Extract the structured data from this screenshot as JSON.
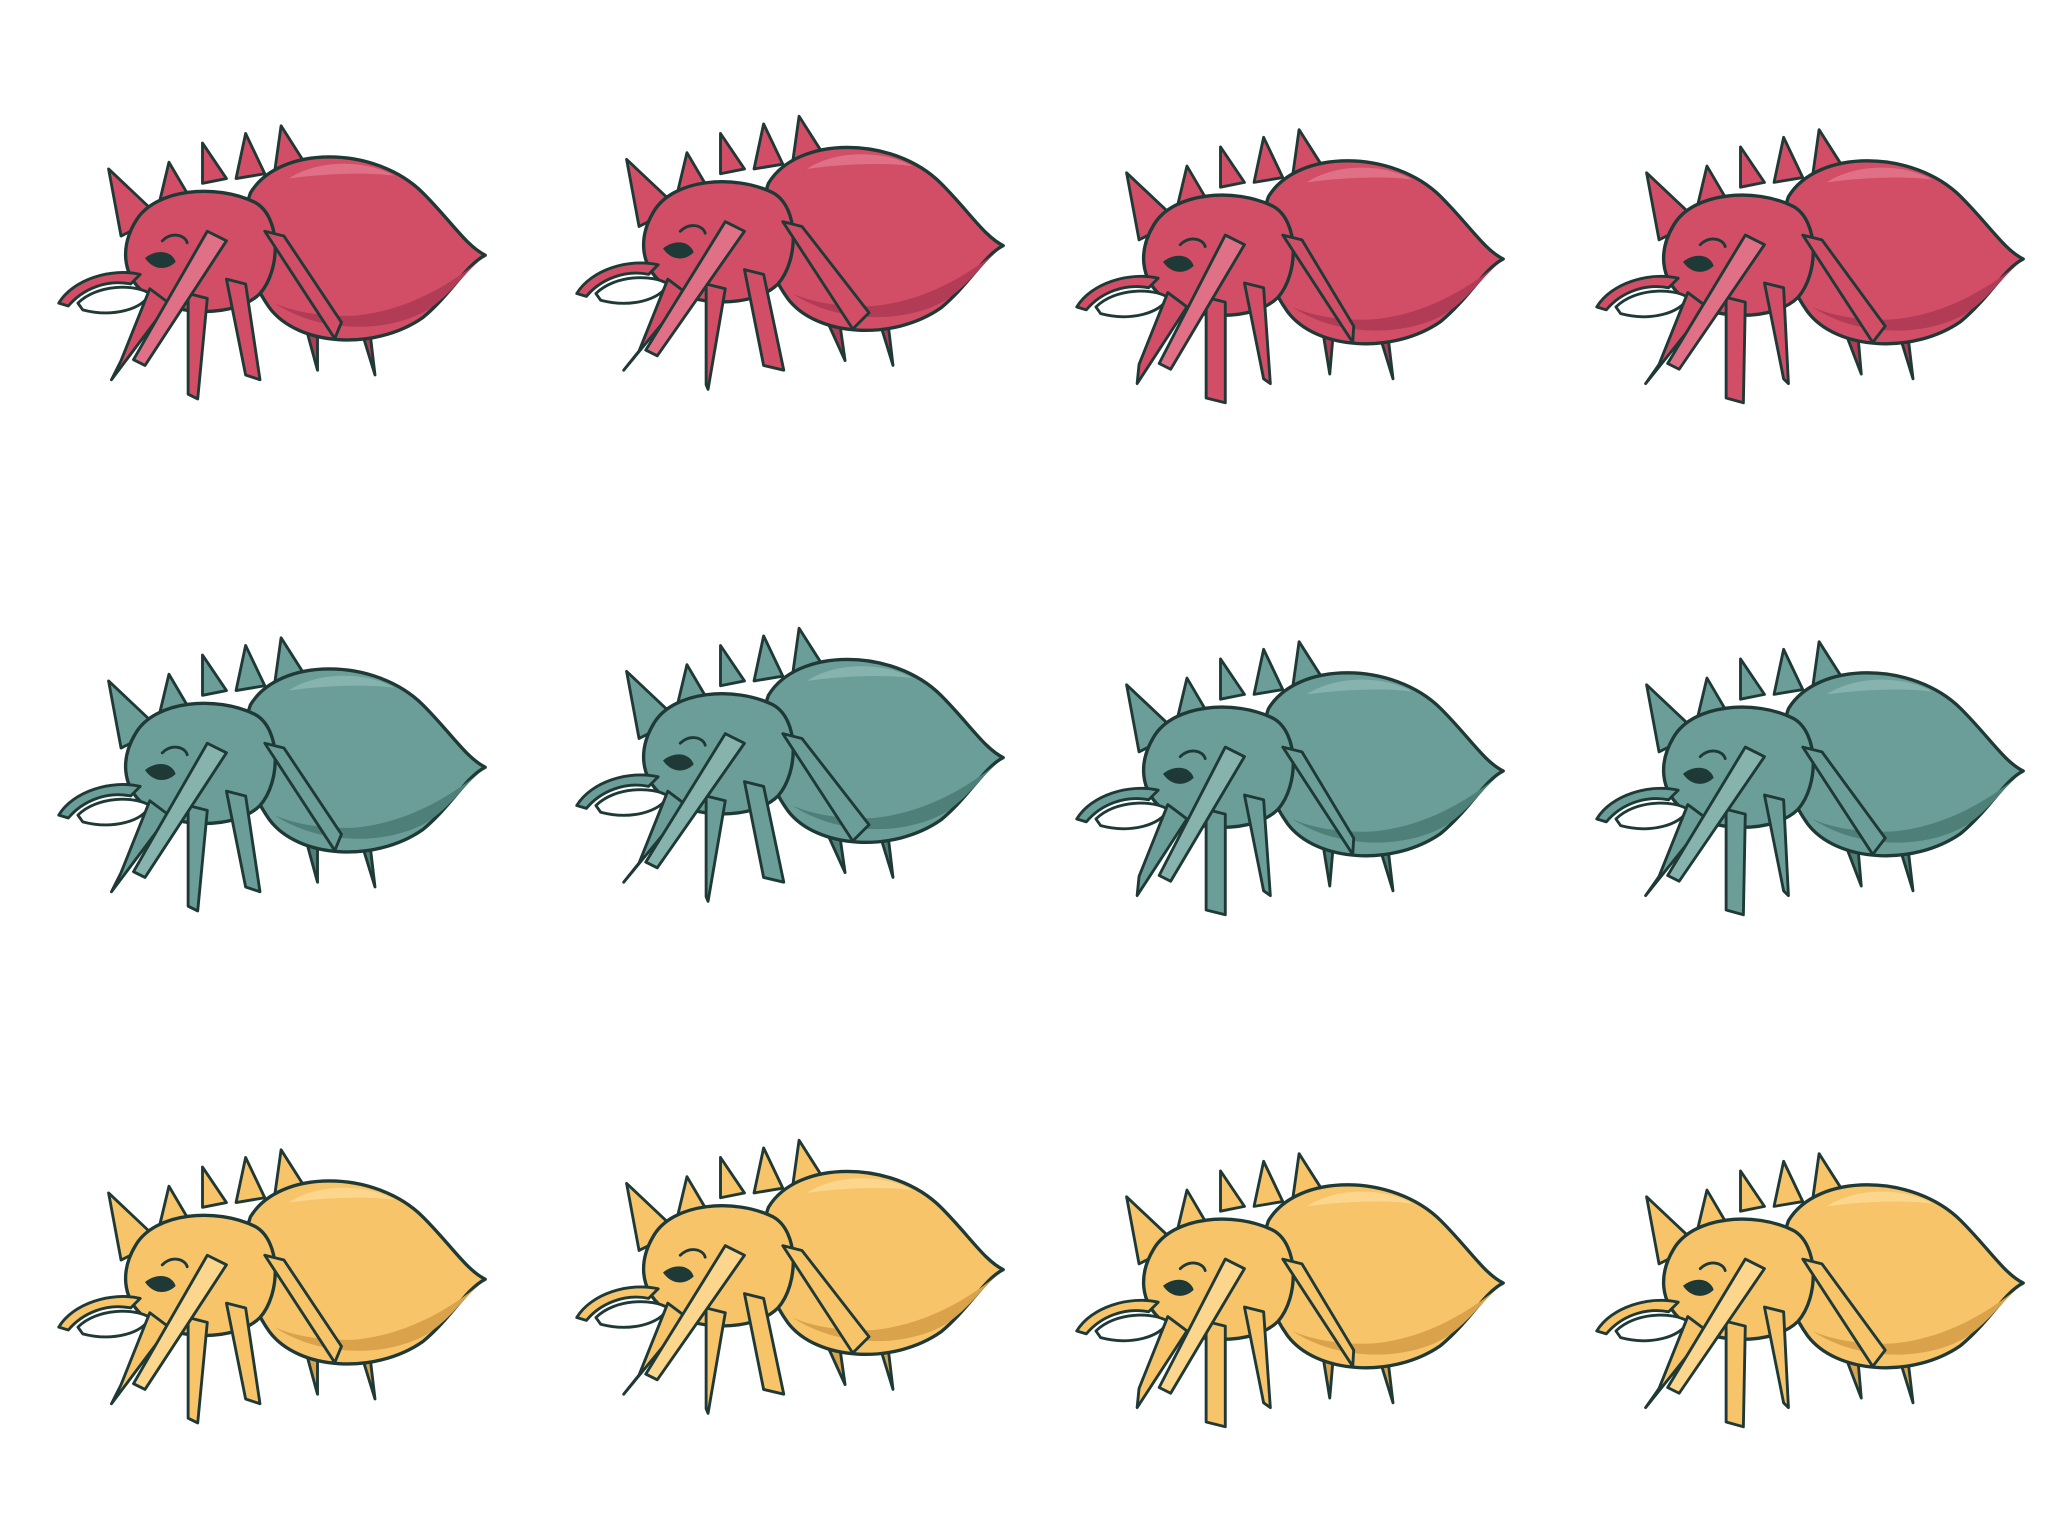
{
  "sprite_sheet": {
    "rows": [
      {
        "variant": "red",
        "body": "#d24d66",
        "shade": "#b23c55",
        "light": "#e07086",
        "frames": [
          0,
          1,
          2,
          3
        ]
      },
      {
        "variant": "teal",
        "body": "#6b9e98",
        "shade": "#4f7f79",
        "light": "#86b3ad",
        "frames": [
          0,
          1,
          2,
          3
        ]
      },
      {
        "variant": "yellow",
        "body": "#f7c469",
        "shade": "#d9a24b",
        "light": "#fbd68c",
        "frames": [
          0,
          1,
          2,
          3
        ]
      }
    ],
    "outline": "#1f3a36",
    "icon": "spider-icon"
  }
}
